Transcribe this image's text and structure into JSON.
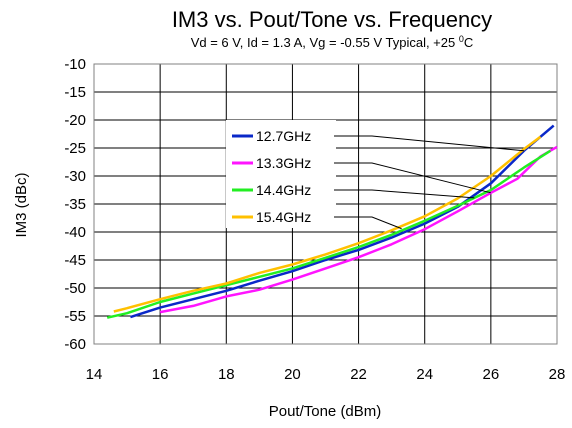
{
  "chart_data": {
    "type": "line",
    "title": "IM3 vs. Pout/Tone vs. Frequency",
    "subtitle_main": "Vd = 6 V, Id = 1.3 A, Vg = -0.55 V Typical, +25 ",
    "subtitle_sup": "0",
    "subtitle_end": "C",
    "xlabel": "Pout/Tone (dBm)",
    "ylabel": "IM3 (dBc)",
    "xlim": [
      14,
      28
    ],
    "ylim": [
      -60,
      -10
    ],
    "xticks": [
      14,
      16,
      18,
      20,
      22,
      24,
      26,
      28
    ],
    "yticks": [
      -10,
      -15,
      -20,
      -25,
      -30,
      -35,
      -40,
      -45,
      -50,
      -55,
      -60
    ],
    "grid": true,
    "legend_position": "center",
    "series": [
      {
        "name": "12.7GHz",
        "color": "#0a28c8",
        "x": [
          15.1,
          16.0,
          17.0,
          18.0,
          19.0,
          20.0,
          21.0,
          22.0,
          23.0,
          24.0,
          25.0,
          26.0,
          27.0,
          27.9
        ],
        "y": [
          -55.2,
          -53.5,
          -52.0,
          -50.5,
          -48.7,
          -47.0,
          -45.0,
          -43.2,
          -41.0,
          -38.5,
          -35.5,
          -31.3,
          -25.5,
          -21.0
        ]
      },
      {
        "name": "13.3GHz",
        "color": "#ff14ff",
        "x": [
          16.0,
          17.0,
          18.0,
          19.0,
          20.0,
          21.0,
          22.0,
          23.0,
          24.0,
          25.0,
          26.0,
          26.8,
          27.5,
          28.0
        ],
        "y": [
          -54.3,
          -53.2,
          -51.5,
          -50.3,
          -48.5,
          -46.5,
          -44.5,
          -42.2,
          -39.5,
          -36.3,
          -33.0,
          -30.5,
          -26.5,
          -24.8
        ]
      },
      {
        "name": "14.4GHz",
        "color": "#22ee22",
        "x": [
          14.4,
          15.0,
          16.0,
          17.0,
          18.0,
          19.0,
          20.0,
          21.0,
          22.0,
          23.0,
          24.0,
          25.0,
          26.0,
          27.0,
          27.8
        ],
        "y": [
          -55.3,
          -54.5,
          -52.5,
          -51.0,
          -49.5,
          -48.0,
          -46.5,
          -44.6,
          -42.7,
          -40.5,
          -38.0,
          -35.3,
          -32.5,
          -28.5,
          -25.5
        ]
      },
      {
        "name": "15.4GHz",
        "color": "#ffc000",
        "x": [
          14.6,
          15.0,
          16.0,
          17.0,
          18.0,
          19.0,
          20.0,
          21.0,
          22.0,
          23.0,
          24.0,
          25.0,
          26.0,
          27.0,
          27.5
        ],
        "y": [
          -54.2,
          -53.6,
          -52.0,
          -50.5,
          -49.2,
          -47.3,
          -45.8,
          -44.0,
          -42.0,
          -39.7,
          -37.2,
          -34.0,
          -30.0,
          -25.2,
          -23.0
        ]
      }
    ]
  }
}
